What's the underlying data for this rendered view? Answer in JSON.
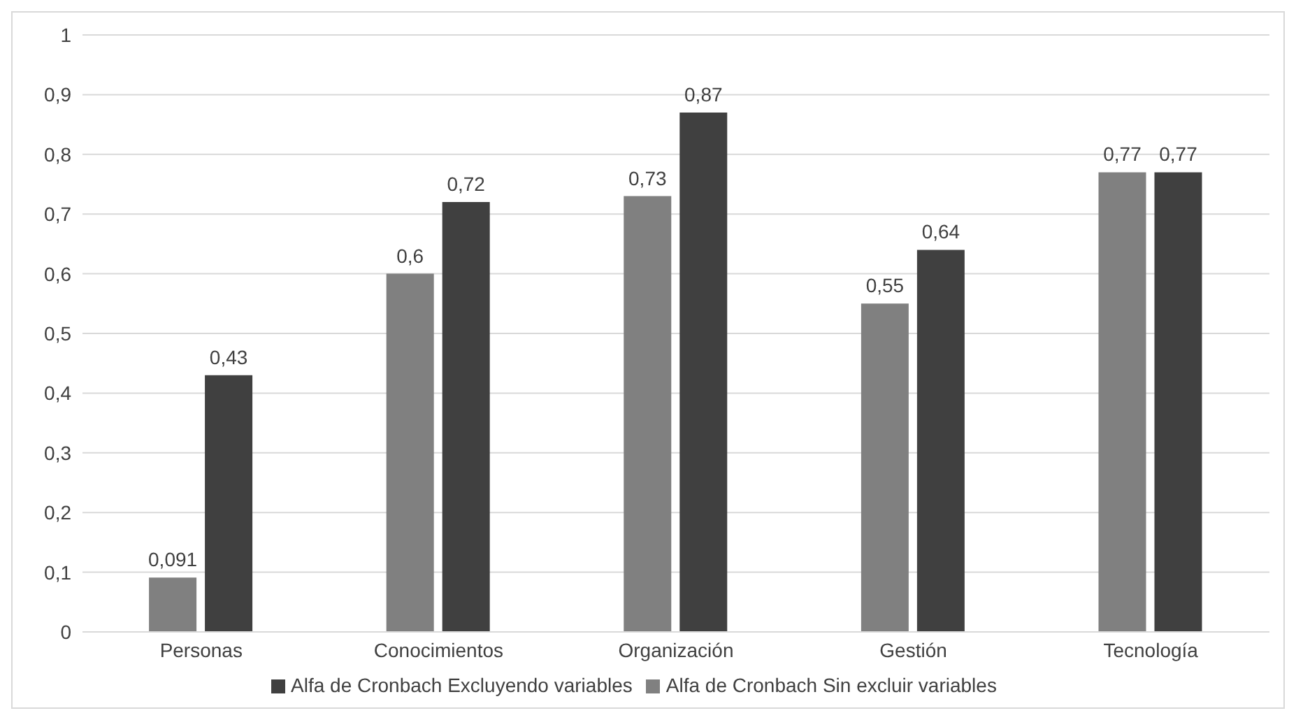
{
  "chart_data": {
    "type": "bar",
    "categories": [
      "Personas",
      "Conocimientos",
      "Organización",
      "Gestión",
      "Tecnología"
    ],
    "series": [
      {
        "name": "Alfa de Cronbach Sin excluir variables",
        "color": "#808080",
        "values": [
          0.091,
          0.6,
          0.73,
          0.55,
          0.77
        ],
        "value_labels": [
          "0,091",
          "0,6",
          "0,73",
          "0,55",
          "0,77"
        ]
      },
      {
        "name": "Alfa de Cronbach Excluyendo variables",
        "color": "#404040",
        "values": [
          0.43,
          0.72,
          0.87,
          0.64,
          0.77
        ],
        "value_labels": [
          "0,43",
          "0,72",
          "0,87",
          "0,64",
          "0,77"
        ]
      }
    ],
    "ylim": [
      0,
      1
    ],
    "yticks": [
      0,
      {
        "value": 0.1,
        "label": "0,1"
      },
      {
        "value": 0.2,
        "label": "0,2"
      },
      {
        "value": 0.3,
        "label": "0,3"
      },
      {
        "value": 0.4,
        "label": "0,4"
      },
      {
        "value": 0.5,
        "label": "0,5"
      },
      {
        "value": 0.6,
        "label": "0,6"
      },
      {
        "value": 0.7,
        "label": "0,7"
      },
      {
        "value": 0.8,
        "label": "0,8"
      },
      {
        "value": 0.9,
        "label": "0,9"
      },
      1
    ],
    "grid": "y",
    "legend": "bottom"
  }
}
